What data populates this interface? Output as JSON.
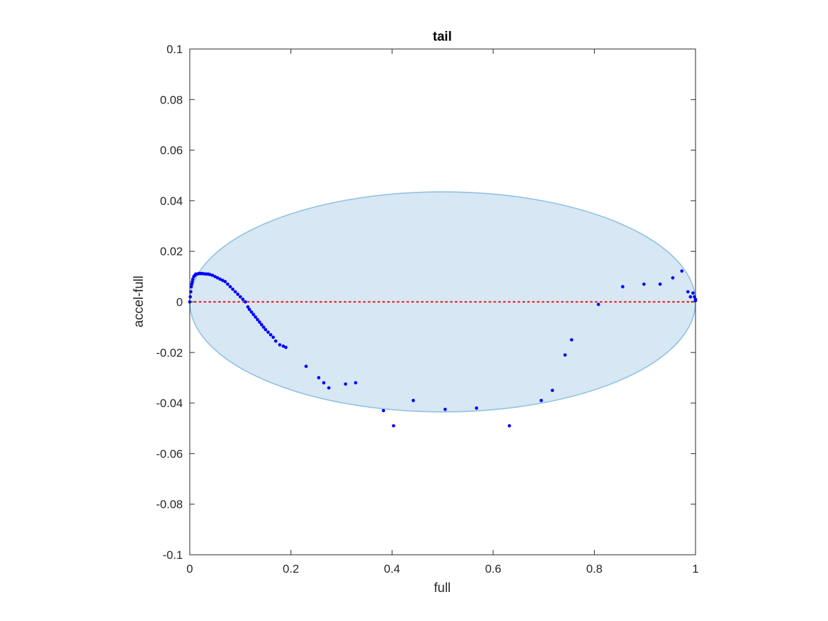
{
  "chart_data": {
    "type": "scatter",
    "title": "tail",
    "xlabel": "full",
    "ylabel": "accel-full",
    "xlim": [
      0,
      1
    ],
    "ylim": [
      -0.1,
      0.1
    ],
    "xticks": [
      0,
      0.2,
      0.4,
      0.6,
      0.8,
      1
    ],
    "xtick_labels": [
      "0",
      "0.2",
      "0.4",
      "0.6",
      "0.8",
      "1"
    ],
    "yticks": [
      -0.1,
      -0.08,
      -0.06,
      -0.04,
      -0.02,
      0,
      0.02,
      0.04,
      0.06,
      0.08,
      0.1
    ],
    "ytick_labels": [
      "-0.1",
      "-0.08",
      "-0.06",
      "-0.04",
      "-0.02",
      "0",
      "0.02",
      "0.04",
      "0.06",
      "0.08",
      "0.1"
    ],
    "grid": false,
    "colors": {
      "points": "#0000ff",
      "ellipse_fill": "#d7e7f3",
      "ellipse_edge": "#8fc1e3",
      "zero_line": "#ff0000",
      "axes": "#262626"
    },
    "ellipse": {
      "center": [
        0.5,
        0.0
      ],
      "semi_axes": [
        0.5,
        0.0435
      ]
    },
    "reference_line": {
      "y": 0,
      "style": "dotted"
    },
    "series": [
      {
        "marker": "dot",
        "x": [
          0,
          0.001,
          0.002,
          0.003,
          0.004,
          0.005,
          0.006,
          0.008,
          0.01,
          0.012,
          0.015,
          0.018,
          0.021,
          0.024,
          0.028,
          0.032,
          0.036,
          0.04,
          0.045,
          0.05,
          0.055,
          0.06,
          0.065,
          0.07,
          0.075,
          0.08,
          0.085,
          0.09,
          0.095,
          0.1,
          0.105,
          0.11,
          0.115,
          0.118,
          0.122,
          0.126,
          0.13,
          0.134,
          0.138,
          0.142,
          0.146,
          0.15,
          0.155,
          0.16,
          0.165,
          0.17,
          0.178,
          0.185,
          0.19,
          0.23,
          0.255,
          0.265,
          0.275,
          0.308,
          0.328,
          0.383,
          0.403,
          0.442,
          0.505,
          0.567,
          0.632,
          0.695,
          0.717,
          0.742,
          0.755,
          0.808,
          0.856,
          0.898,
          0.93,
          0.955,
          0.973,
          0.985,
          0.99,
          0.995,
          0.998,
          1.0,
          1.0
        ],
        "y": [
          0,
          0.002,
          0.004,
          0.006,
          0.007,
          0.008,
          0.009,
          0.01,
          0.0105,
          0.011,
          0.011,
          0.0112,
          0.0112,
          0.0112,
          0.0111,
          0.011,
          0.011,
          0.0108,
          0.0105,
          0.01,
          0.0095,
          0.009,
          0.0085,
          0.008,
          0.007,
          0.006,
          0.005,
          0.004,
          0.003,
          0.002,
          0.001,
          0.0,
          -0.002,
          -0.003,
          -0.004,
          -0.005,
          -0.006,
          -0.007,
          -0.008,
          -0.009,
          -0.01,
          -0.011,
          -0.012,
          -0.013,
          -0.014,
          -0.0155,
          -0.017,
          -0.0175,
          -0.018,
          -0.0255,
          -0.03,
          -0.032,
          -0.034,
          -0.0325,
          -0.032,
          -0.043,
          -0.049,
          -0.039,
          -0.0425,
          -0.042,
          -0.049,
          -0.039,
          -0.035,
          -0.021,
          -0.015,
          -0.001,
          0.006,
          0.007,
          0.007,
          0.0095,
          0.0122,
          0.004,
          0.002,
          0.0035,
          0.002,
          0.001,
          0.0005
        ]
      }
    ]
  }
}
